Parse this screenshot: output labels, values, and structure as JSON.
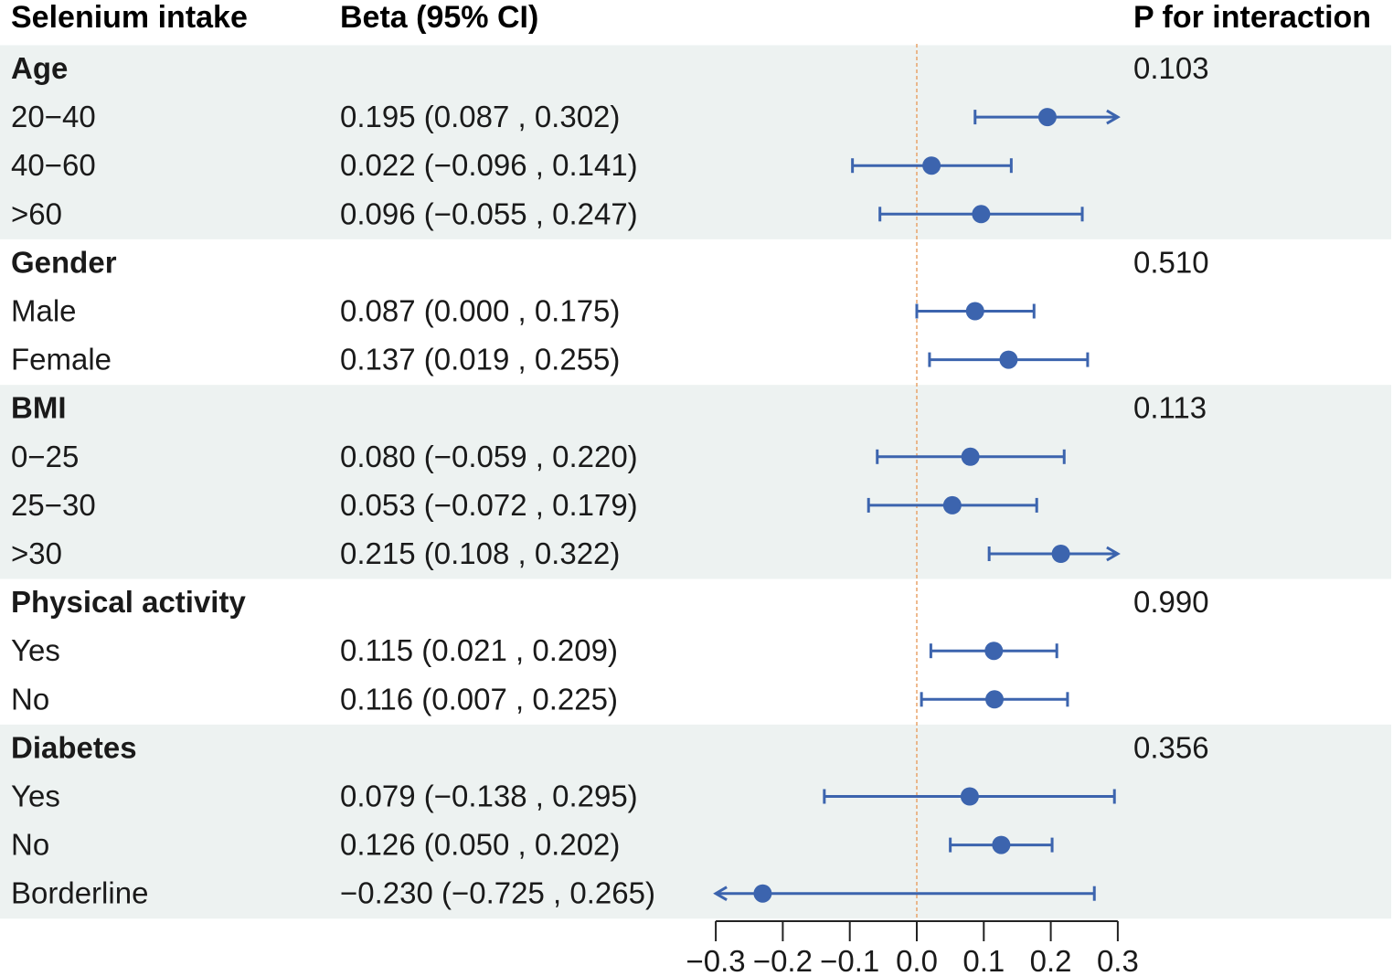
{
  "chart_data": {
    "type": "forest",
    "headers": {
      "subgroup": "Selenium intake",
      "estimate": "Beta (95% CI)",
      "p": "P for interaction"
    },
    "xlim": [
      -0.3,
      0.3
    ],
    "reference_line": 0.0,
    "x_ticks": [
      "−0.3",
      "−0.2",
      "−0.1",
      "0.0",
      "0.1",
      "0.2",
      "0.3"
    ],
    "x_tick_values": [
      -0.3,
      -0.2,
      -0.1,
      0.0,
      0.1,
      0.2,
      0.3
    ],
    "colors": {
      "marker": "#3c64ae",
      "reference_line": "#e8a36a",
      "band": "#edf2f1",
      "axis": "#222222"
    },
    "groups": [
      {
        "name": "Age",
        "p": "0.103",
        "shaded": true,
        "rows": [
          {
            "label": "20−40",
            "ci_text": "0.195 (0.087 , 0.302)",
            "beta": 0.195,
            "lower": 0.087,
            "upper": 0.302
          },
          {
            "label": "40−60",
            "ci_text": "0.022 (−0.096 , 0.141)",
            "beta": 0.022,
            "lower": -0.096,
            "upper": 0.141
          },
          {
            "label": ">60",
            "ci_text": "0.096 (−0.055 , 0.247)",
            "beta": 0.096,
            "lower": -0.055,
            "upper": 0.247
          }
        ]
      },
      {
        "name": "Gender",
        "p": "0.510",
        "shaded": false,
        "rows": [
          {
            "label": "Male",
            "ci_text": "0.087 (0.000 , 0.175)",
            "beta": 0.087,
            "lower": 0.0,
            "upper": 0.175
          },
          {
            "label": "Female",
            "ci_text": "0.137 (0.019 , 0.255)",
            "beta": 0.137,
            "lower": 0.019,
            "upper": 0.255
          }
        ]
      },
      {
        "name": "BMI",
        "p": "0.113",
        "shaded": true,
        "rows": [
          {
            "label": "0−25",
            "ci_text": "0.080 (−0.059 , 0.220)",
            "beta": 0.08,
            "lower": -0.059,
            "upper": 0.22
          },
          {
            "label": "25−30",
            "ci_text": "0.053 (−0.072 , 0.179)",
            "beta": 0.053,
            "lower": -0.072,
            "upper": 0.179
          },
          {
            "label": ">30",
            "ci_text": "0.215 (0.108 , 0.322)",
            "beta": 0.215,
            "lower": 0.108,
            "upper": 0.322
          }
        ]
      },
      {
        "name": "Physical activity",
        "p": "0.990",
        "shaded": false,
        "rows": [
          {
            "label": "Yes",
            "ci_text": "0.115 (0.021 , 0.209)",
            "beta": 0.115,
            "lower": 0.021,
            "upper": 0.209
          },
          {
            "label": "No",
            "ci_text": "0.116 (0.007 , 0.225)",
            "beta": 0.116,
            "lower": 0.007,
            "upper": 0.225
          }
        ]
      },
      {
        "name": "Diabetes",
        "p": "0.356",
        "shaded": true,
        "rows": [
          {
            "label": "Yes",
            "ci_text": "0.079 (−0.138 , 0.295)",
            "beta": 0.079,
            "lower": -0.138,
            "upper": 0.295
          },
          {
            "label": "No",
            "ci_text": "0.126 (0.050 , 0.202)",
            "beta": 0.126,
            "lower": 0.05,
            "upper": 0.202
          },
          {
            "label": "Borderline",
            "ci_text": "−0.230 (−0.725 , 0.265)",
            "beta": -0.23,
            "lower": -0.725,
            "upper": 0.265
          }
        ]
      }
    ]
  }
}
